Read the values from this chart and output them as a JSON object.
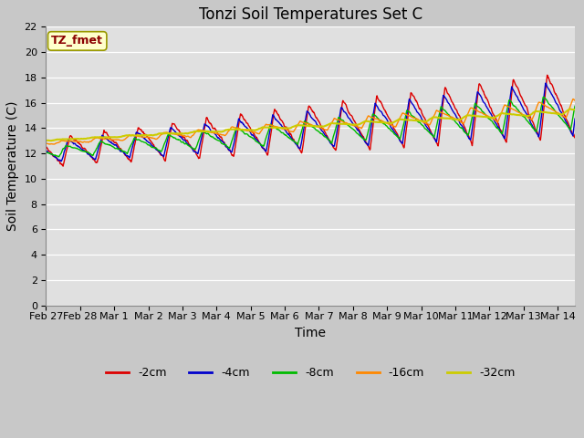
{
  "title": "Tonzi Soil Temperatures Set C",
  "xlabel": "Time",
  "ylabel": "Soil Temperature (C)",
  "legend_label": "TZ_fmet",
  "ylim": [
    0,
    22
  ],
  "yticks": [
    0,
    2,
    4,
    6,
    8,
    10,
    12,
    14,
    16,
    18,
    20,
    22
  ],
  "series_colors": {
    "-2cm": "#dd0000",
    "-4cm": "#0000cc",
    "-8cm": "#00bb00",
    "-16cm": "#ff8800",
    "-32cm": "#cccc00"
  },
  "xtick_labels": [
    "Feb 27",
    "Feb 28",
    "Mar 1",
    "Mar 2",
    "Mar 3",
    "Mar 4",
    "Mar 5",
    "Mar 6",
    "Mar 7",
    "Mar 8",
    "Mar 9",
    "Mar 10",
    "Mar 11",
    "Mar 12",
    "Mar 13",
    "Mar 14"
  ],
  "fig_facecolor": "#c8c8c8",
  "ax_facecolor": "#e0e0e0",
  "title_fontsize": 12,
  "axis_label_fontsize": 10,
  "tick_label_fontsize": 8
}
